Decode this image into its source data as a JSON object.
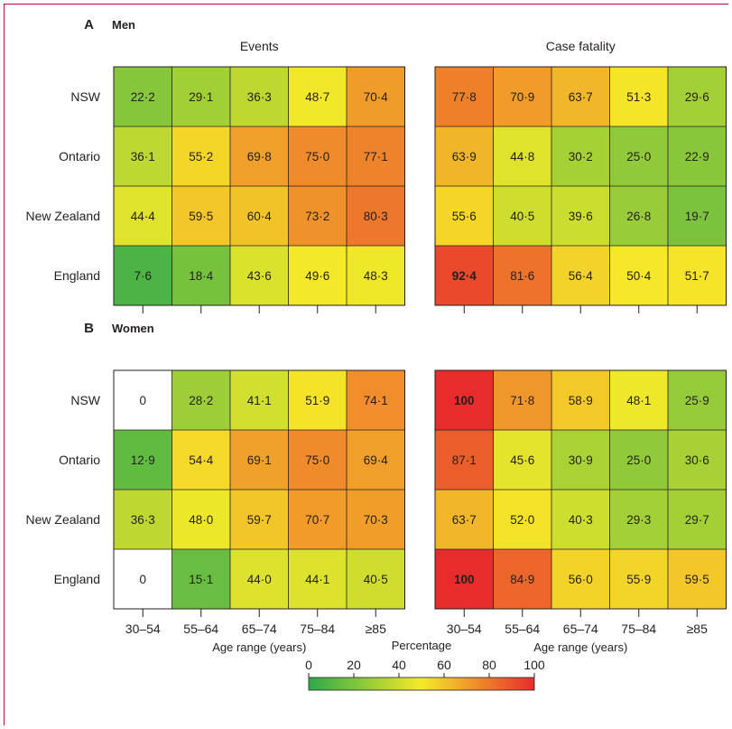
{
  "chart_data": {
    "type": "heatmap",
    "colorbar": {
      "label": "Percentage",
      "ticks": [
        "0",
        "20",
        "40",
        "60",
        "80",
        "100"
      ],
      "range": [
        0,
        100
      ],
      "scale": "green-yellow-red"
    },
    "xlabel": "Age range (years)",
    "age_ranges": [
      "30–54",
      "55–64",
      "65–74",
      "75–84",
      "≥85"
    ],
    "regions": [
      "NSW",
      "Ontario",
      "New Zealand",
      "England"
    ],
    "panels": [
      {
        "letter": "A",
        "title": "Men",
        "heatmaps": [
          {
            "title": "Events",
            "values": [
              [
                22.2,
                29.1,
                36.3,
                48.7,
                70.4
              ],
              [
                36.1,
                55.2,
                69.8,
                75.0,
                77.1
              ],
              [
                44.4,
                59.5,
                60.4,
                73.2,
                80.3
              ],
              [
                7.6,
                18.4,
                43.6,
                49.6,
                48.3
              ]
            ],
            "labels": [
              [
                "22·2",
                "29·1",
                "36·3",
                "48·7",
                "70·4"
              ],
              [
                "36·1",
                "55·2",
                "69·8",
                "75·0",
                "77·1"
              ],
              [
                "44·4",
                "59·5",
                "60·4",
                "73·2",
                "80·3"
              ],
              [
                "7·6",
                "18·4",
                "43·6",
                "49·6",
                "48·3"
              ]
            ]
          },
          {
            "title": "Case fatality",
            "values": [
              [
                77.8,
                70.9,
                63.7,
                51.3,
                29.6
              ],
              [
                63.9,
                44.8,
                30.2,
                25.0,
                22.9
              ],
              [
                55.6,
                40.5,
                39.6,
                26.8,
                19.7
              ],
              [
                92.4,
                81.6,
                56.4,
                50.4,
                51.7
              ]
            ],
            "labels": [
              [
                "77·8",
                "70·9",
                "63·7",
                "51·3",
                "29·6"
              ],
              [
                "63·9",
                "44·8",
                "30·2",
                "25·0",
                "22·9"
              ],
              [
                "55·6",
                "40·5",
                "39·6",
                "26·8",
                "19·7"
              ],
              [
                "92·4",
                "81·6",
                "56·4",
                "50·4",
                "51·7"
              ]
            ]
          }
        ]
      },
      {
        "letter": "B",
        "title": "Women",
        "heatmaps": [
          {
            "title": "",
            "values": [
              [
                0,
                28.2,
                41.1,
                51.9,
                74.1
              ],
              [
                12.9,
                54.4,
                69.1,
                75.0,
                69.4
              ],
              [
                36.3,
                48.0,
                59.7,
                70.7,
                70.3
              ],
              [
                0,
                15.1,
                44.0,
                44.1,
                40.5
              ]
            ],
            "labels": [
              [
                "0",
                "28·2",
                "41·1",
                "51·9",
                "74·1"
              ],
              [
                "12·9",
                "54·4",
                "69·1",
                "75·0",
                "69·4"
              ],
              [
                "36·3",
                "48·0",
                "59·7",
                "70·7",
                "70·3"
              ],
              [
                "0",
                "15·1",
                "44·0",
                "44·1",
                "40·5"
              ]
            ]
          },
          {
            "title": "",
            "values": [
              [
                100,
                71.8,
                58.9,
                48.1,
                25.9
              ],
              [
                87.1,
                45.6,
                30.9,
                25.0,
                30.6
              ],
              [
                63.7,
                52.0,
                40.3,
                29.3,
                29.7
              ],
              [
                100,
                84.9,
                56.0,
                55.9,
                59.5
              ]
            ],
            "labels": [
              [
                "100",
                "71·8",
                "58·9",
                "48·1",
                "25·9"
              ],
              [
                "87·1",
                "45·6",
                "30·9",
                "25·0",
                "30·6"
              ],
              [
                "63·7",
                "52·0",
                "40·3",
                "29·3",
                "29·7"
              ],
              [
                "100",
                "84·9",
                "56·0",
                "55·9",
                "59·5"
              ]
            ]
          }
        ]
      }
    ]
  }
}
